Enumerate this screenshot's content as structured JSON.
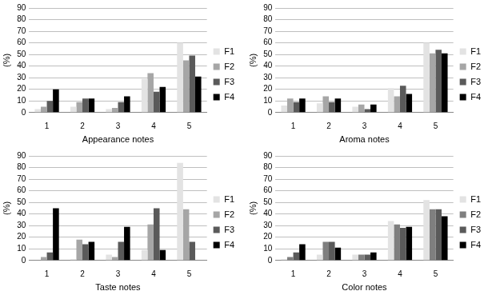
{
  "chart_data": [
    {
      "type": "bar",
      "x_label": "Appearance notes",
      "y_label": "(%)",
      "categories": [
        "1",
        "2",
        "3",
        "4",
        "5"
      ],
      "series": [
        {
          "name": "F1",
          "color": "#e3e3e3",
          "values": [
            3,
            5,
            3,
            29,
            60
          ]
        },
        {
          "name": "F2",
          "color": "#a6a6a6",
          "values": [
            5,
            9,
            4,
            34,
            45
          ]
        },
        {
          "name": "F3",
          "color": "#5a5a5a",
          "values": [
            10,
            12,
            9,
            18,
            49
          ]
        },
        {
          "name": "F4",
          "color": "#000000",
          "values": [
            20,
            12,
            14,
            22,
            31
          ]
        }
      ],
      "ylim": [
        0,
        90
      ],
      "yticks": [
        0,
        10,
        20,
        30,
        40,
        50,
        60,
        70,
        80,
        90
      ],
      "grid": true,
      "legend": "right"
    },
    {
      "type": "bar",
      "x_label": "Aroma notes",
      "y_label": "(%)",
      "categories": [
        "1",
        "2",
        "3",
        "4",
        "5"
      ],
      "series": [
        {
          "name": "F1",
          "color": "#e3e3e3",
          "values": [
            6,
            8,
            5,
            21,
            60
          ]
        },
        {
          "name": "F2",
          "color": "#a6a6a6",
          "values": [
            12,
            14,
            7,
            14,
            51
          ]
        },
        {
          "name": "F3",
          "color": "#5a5a5a",
          "values": [
            9,
            9,
            3,
            23,
            54
          ]
        },
        {
          "name": "F4",
          "color": "#000000",
          "values": [
            12,
            12,
            7,
            16,
            51
          ]
        }
      ],
      "ylim": [
        0,
        90
      ],
      "yticks": [
        0,
        10,
        20,
        30,
        40,
        50,
        60,
        70,
        80,
        90
      ],
      "grid": true,
      "legend": "right"
    },
    {
      "type": "bar",
      "x_label": "Taste notes",
      "y_label": "(%)",
      "categories": [
        "1",
        "2",
        "3",
        "4",
        "5"
      ],
      "series": [
        {
          "name": "F1",
          "color": "#e3e3e3",
          "values": [
            0,
            1,
            5,
            9,
            84
          ]
        },
        {
          "name": "F2",
          "color": "#a6a6a6",
          "values": [
            3,
            18,
            3,
            31,
            44
          ]
        },
        {
          "name": "F3",
          "color": "#5a5a5a",
          "values": [
            7,
            14,
            16,
            45,
            16
          ]
        },
        {
          "name": "F4",
          "color": "#000000",
          "values": [
            45,
            16,
            29,
            9,
            0
          ]
        }
      ],
      "ylim": [
        0,
        90
      ],
      "yticks": [
        0,
        10,
        20,
        30,
        40,
        50,
        60,
        70,
        80,
        90
      ],
      "grid": true,
      "legend": "right"
    },
    {
      "type": "bar",
      "x_label": "Color notes",
      "y_label": "(%)",
      "categories": [
        "1",
        "2",
        "3",
        "4",
        "5"
      ],
      "series": [
        {
          "name": "F1",
          "color": "#e3e3e3",
          "values": [
            1,
            5,
            5,
            34,
            52
          ]
        },
        {
          "name": "F2",
          "color": "#7f7f7f",
          "values": [
            3,
            16,
            5,
            31,
            44
          ]
        },
        {
          "name": "F3",
          "color": "#5a5a5a",
          "values": [
            7,
            16,
            5,
            28,
            44
          ]
        },
        {
          "name": "F4",
          "color": "#000000",
          "values": [
            14,
            11,
            7,
            29,
            38
          ]
        }
      ],
      "ylim": [
        0,
        90
      ],
      "yticks": [
        0,
        10,
        20,
        30,
        40,
        50,
        60,
        70,
        80,
        90
      ],
      "grid": true,
      "legend": "right"
    }
  ]
}
